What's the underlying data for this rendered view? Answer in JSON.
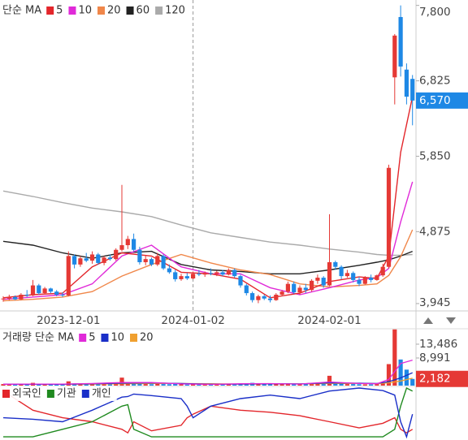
{
  "chart_data": {
    "type": "candlestick",
    "categories": [
      null,
      null,
      null,
      null,
      null,
      null,
      null,
      null,
      null,
      null,
      null,
      "2023-12-01",
      null,
      null,
      null,
      null,
      null,
      null,
      null,
      null,
      null,
      null,
      null,
      null,
      null,
      null,
      null,
      null,
      null,
      null,
      null,
      null,
      "2024-01-02",
      null,
      null,
      null,
      null,
      null,
      null,
      null,
      null,
      null,
      null,
      null,
      null,
      null,
      null,
      null,
      null,
      null,
      null,
      null,
      null,
      null,
      null,
      "2024-02-01",
      null,
      null,
      null,
      null,
      null,
      null,
      null,
      null,
      null,
      null,
      null,
      null,
      null,
      null
    ],
    "open": [
      4000,
      4010,
      4030,
      4000,
      4060,
      4050,
      4180,
      4080,
      4140,
      4100,
      4060,
      4050,
      4560,
      4450,
      4530,
      4500,
      4580,
      4470,
      4540,
      4520,
      4640,
      4700,
      4780,
      4640,
      4480,
      4520,
      4450,
      4560,
      4400,
      4350,
      4260,
      4300,
      4270,
      4330,
      4320,
      4340,
      4330,
      4350,
      4320,
      4380,
      4300,
      4180,
      4080,
      3990,
      4040,
      4010,
      3990,
      4060,
      4100,
      4200,
      4090,
      4150,
      4120,
      4240,
      4280,
      4180,
      4480,
      4420,
      4300,
      4340,
      4250,
      4200,
      4280,
      4250,
      4310,
      4420,
      6870,
      7650,
      6970,
      6850
    ],
    "high": [
      4040,
      4060,
      4050,
      4080,
      4120,
      4250,
      4200,
      4160,
      4150,
      4120,
      4090,
      4620,
      4580,
      4560,
      4600,
      4620,
      4600,
      4560,
      4580,
      4660,
      5480,
      4820,
      4850,
      4680,
      4560,
      4540,
      4600,
      4580,
      4450,
      4380,
      4330,
      4340,
      4360,
      4380,
      4360,
      4400,
      4370,
      4380,
      4400,
      4400,
      4320,
      4200,
      4100,
      4060,
      4060,
      4050,
      4080,
      4120,
      4230,
      4230,
      4180,
      4200,
      4260,
      4320,
      4300,
      5100,
      4500,
      4440,
      4380,
      4360,
      4290,
      4300,
      4320,
      4320,
      4460,
      5740,
      7430,
      7800,
      7050,
      6900
    ],
    "low": [
      3970,
      3990,
      3990,
      3990,
      4030,
      4040,
      4060,
      4060,
      4080,
      4040,
      4030,
      4040,
      4400,
      4420,
      4480,
      4460,
      4450,
      4440,
      4500,
      4500,
      4620,
      4650,
      4620,
      4450,
      4440,
      4430,
      4430,
      4380,
      4330,
      4230,
      4240,
      4250,
      4260,
      4300,
      4290,
      4310,
      4300,
      4300,
      4310,
      4280,
      4150,
      4050,
      3960,
      3950,
      3990,
      3960,
      3980,
      4040,
      4080,
      4070,
      4060,
      4080,
      4100,
      4200,
      4150,
      4170,
      4380,
      4260,
      4280,
      4220,
      4170,
      4190,
      4220,
      4240,
      4290,
      4400,
      6520,
      6880,
      6520,
      6250
    ],
    "close": [
      4010,
      4030,
      4000,
      4060,
      4050,
      4180,
      4080,
      4140,
      4100,
      4060,
      4050,
      4560,
      4450,
      4530,
      4500,
      4580,
      4470,
      4540,
      4520,
      4640,
      4700,
      4780,
      4640,
      4480,
      4520,
      4450,
      4560,
      4400,
      4350,
      4260,
      4300,
      4270,
      4330,
      4320,
      4340,
      4330,
      4350,
      4320,
      4380,
      4300,
      4180,
      4080,
      3990,
      4040,
      4010,
      3990,
      4060,
      4100,
      4200,
      4090,
      4150,
      4120,
      4240,
      4280,
      4180,
      4480,
      4420,
      4300,
      4340,
      4250,
      4200,
      4280,
      4250,
      4310,
      4420,
      5700,
      7410,
      7010,
      6620,
      6570
    ],
    "ylim": [
      3850,
      7870
    ],
    "yticks": [
      {
        "value": 7800,
        "label": "7,800"
      },
      {
        "value": 6825,
        "label": "6,825"
      },
      {
        "value": 5850,
        "label": "5,850"
      },
      {
        "value": 4875,
        "label": "4,875"
      },
      {
        "value": 3945,
        "label": "3,945"
      }
    ],
    "price_last": {
      "value": 6570,
      "label": "6,570"
    },
    "ma_title": "단순 MA",
    "ma_x": [
      0,
      5,
      10,
      15,
      20,
      25,
      30,
      35,
      40,
      45,
      50,
      55,
      60,
      63,
      65,
      67,
      69
    ],
    "ma_series": [
      {
        "name": "5",
        "color": "#e3262b",
        "values": [
          4020,
          4060,
          4080,
          4420,
          4600,
          4560,
          4350,
          4330,
          4260,
          4020,
          4080,
          4230,
          4290,
          4270,
          4560,
          5900,
          6620
        ]
      },
      {
        "name": "10",
        "color": "#e02ad8",
        "values": [
          4000,
          4030,
          4060,
          4200,
          4560,
          4700,
          4420,
          4330,
          4330,
          4150,
          4060,
          4150,
          4250,
          4280,
          4400,
          5000,
          5520
        ]
      },
      {
        "name": "20",
        "color": "#f0874a",
        "values": [
          3980,
          4000,
          4030,
          4100,
          4300,
          4450,
          4580,
          4470,
          4380,
          4320,
          4200,
          4160,
          4180,
          4200,
          4310,
          4550,
          4900
        ]
      },
      {
        "name": "60",
        "color": "#222222",
        "values": [
          4750,
          4700,
          4600,
          4530,
          4600,
          4620,
          4450,
          4380,
          4360,
          4330,
          4330,
          4380,
          4440,
          4480,
          4510,
          4560,
          4620
        ]
      },
      {
        "name": "120",
        "color": "#aaaaaa",
        "values": [
          5400,
          5330,
          5250,
          5180,
          5130,
          5070,
          4960,
          4860,
          4800,
          4740,
          4700,
          4650,
          4610,
          4580,
          4570,
          4570,
          4580
        ]
      }
    ],
    "volume": {
      "title": "거래량 단순 MA",
      "values": [
        500,
        400,
        300,
        450,
        350,
        900,
        400,
        350,
        300,
        300,
        350,
        1400,
        700,
        500,
        450,
        600,
        500,
        400,
        450,
        700,
        2600,
        900,
        1000,
        700,
        500,
        450,
        600,
        500,
        450,
        600,
        400,
        350,
        400,
        350,
        300,
        350,
        400,
        300,
        500,
        350,
        700,
        800,
        900,
        600,
        500,
        550,
        500,
        400,
        700,
        500,
        400,
        450,
        500,
        600,
        500,
        3200,
        900,
        600,
        500,
        500,
        450,
        400,
        400,
        500,
        900,
        7000,
        18300,
        8500,
        5200,
        2182
      ],
      "ylim": [
        0,
        18500
      ],
      "yticks": [
        {
          "value": 13486,
          "label": "13,486"
        },
        {
          "value": 8991,
          "label": "8,991"
        }
      ],
      "last": {
        "value": 2182,
        "label": "2,182"
      },
      "ma_x": [
        0,
        5,
        10,
        15,
        20,
        25,
        30,
        35,
        40,
        45,
        50,
        55,
        60,
        63,
        65,
        67,
        69
      ],
      "series": [
        {
          "name": "5",
          "color": "#e02ad8",
          "values": [
            450,
            500,
            500,
            700,
            1000,
            1000,
            550,
            400,
            600,
            650,
            500,
            1200,
            700,
            600,
            2000,
            7200,
            8300
          ]
        },
        {
          "name": "10",
          "color": "#1a2fc8",
          "values": [
            450,
            450,
            450,
            600,
            800,
            900,
            700,
            450,
            500,
            600,
            550,
            900,
            800,
            700,
            1300,
            2500,
            4200
          ]
        },
        {
          "name": "20",
          "color": "#f0a030",
          "values": [
            450,
            450,
            450,
            500,
            600,
            700,
            700,
            600,
            500,
            550,
            550,
            700,
            700,
            650,
            900,
            1500,
            2400
          ]
        }
      ]
    },
    "investors": {
      "x": [
        0,
        5,
        10,
        15,
        20,
        21,
        22,
        25,
        30,
        31,
        32,
        35,
        40,
        45,
        50,
        55,
        60,
        64,
        66,
        67,
        68,
        69
      ],
      "ylim": [
        0,
        100
      ],
      "series": [
        {
          "name": "외국인",
          "color": "#e3262b",
          "values": [
            94,
            56,
            41,
            33,
            18,
            11,
            33,
            15,
            26,
            41,
            48,
            64,
            56,
            52,
            45,
            33,
            21,
            30,
            41,
            18,
            11,
            18
          ]
        },
        {
          "name": "기관",
          "color": "#1f8a1f",
          "values": [
            3,
            3,
            18,
            33,
            64,
            67,
            18,
            3,
            3,
            3,
            3,
            3,
            3,
            3,
            3,
            3,
            3,
            3,
            18,
            64,
            100,
            94
          ]
        },
        {
          "name": "개인",
          "color": "#1a2fc8",
          "values": [
            41,
            38,
            33,
            56,
            82,
            83,
            88,
            85,
            79,
            64,
            41,
            64,
            79,
            86,
            79,
            94,
            100,
            95,
            86,
            33,
            3,
            48
          ]
        }
      ]
    }
  }
}
